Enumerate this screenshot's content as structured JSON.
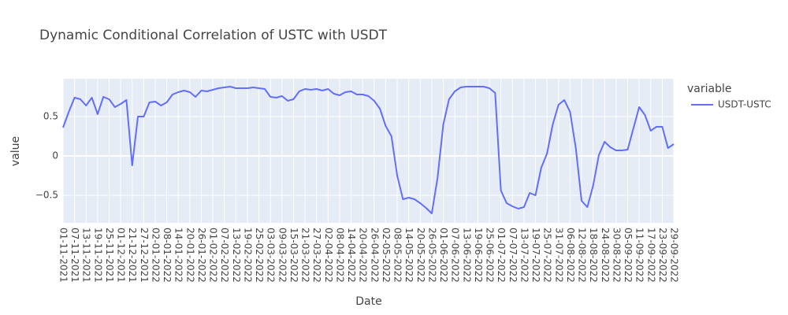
{
  "chart_data": {
    "type": "line",
    "title": "Dynamic Conditional Correlation of USTC with USDT",
    "x_label": "Date",
    "y_label": "value",
    "legend_title": "variable",
    "legend_position": "right",
    "grid": true,
    "x": [
      "01-11-2021",
      "04-11-2021",
      "07-11-2021",
      "10-11-2021",
      "13-11-2021",
      "16-11-2021",
      "19-11-2021",
      "22-11-2021",
      "25-11-2021",
      "28-11-2021",
      "01-12-2021",
      "04-12-2021",
      "21-12-2021",
      "24-12-2021",
      "27-12-2021",
      "30-12-2021",
      "02-01-2022",
      "05-01-2022",
      "08-01-2022",
      "11-01-2022",
      "14-01-2022",
      "17-01-2022",
      "20-01-2022",
      "23-01-2022",
      "26-01-2022",
      "29-01-2022",
      "01-02-2022",
      "04-02-2022",
      "07-02-2022",
      "10-02-2022",
      "13-02-2022",
      "16-02-2022",
      "19-02-2022",
      "22-02-2022",
      "25-02-2022",
      "28-02-2022",
      "03-03-2022",
      "06-03-2022",
      "09-03-2022",
      "12-03-2022",
      "15-03-2022",
      "18-03-2022",
      "21-03-2022",
      "24-03-2022",
      "27-03-2022",
      "30-03-2022",
      "02-04-2022",
      "05-04-2022",
      "08-04-2022",
      "11-04-2022",
      "14-04-2022",
      "17-04-2022",
      "20-04-2022",
      "23-04-2022",
      "26-04-2022",
      "29-04-2022",
      "02-05-2022",
      "05-05-2022",
      "08-05-2022",
      "11-05-2022",
      "14-05-2022",
      "17-05-2022",
      "20-05-2022",
      "23-05-2022",
      "26-05-2022",
      "29-05-2022",
      "01-06-2022",
      "04-06-2022",
      "07-06-2022",
      "10-06-2022",
      "13-06-2022",
      "16-06-2022",
      "19-06-2022",
      "22-06-2022",
      "25-06-2022",
      "28-06-2022",
      "01-07-2022",
      "04-07-2022",
      "07-07-2022",
      "10-07-2022",
      "13-07-2022",
      "16-07-2022",
      "19-07-2022",
      "22-07-2022",
      "25-07-2022",
      "28-07-2022",
      "31-07-2022",
      "03-08-2022",
      "06-08-2022",
      "09-08-2022",
      "12-08-2022",
      "15-08-2022",
      "18-08-2022",
      "21-08-2022",
      "24-08-2022",
      "27-08-2022",
      "30-08-2022",
      "02-09-2022",
      "05-09-2022",
      "08-09-2022",
      "11-09-2022",
      "14-09-2022",
      "17-09-2022",
      "20-09-2022",
      "23-09-2022",
      "26-09-2022",
      "29-09-2022"
    ],
    "series": [
      {
        "name": "USDT-USTC",
        "color": "#636efa",
        "values": [
          0.36,
          0.56,
          0.74,
          0.72,
          0.64,
          0.74,
          0.53,
          0.75,
          0.72,
          0.62,
          0.66,
          0.71,
          -0.12,
          0.5,
          0.5,
          0.68,
          0.69,
          0.64,
          0.68,
          0.78,
          0.81,
          0.83,
          0.81,
          0.75,
          0.83,
          0.82,
          0.84,
          0.86,
          0.87,
          0.88,
          0.86,
          0.86,
          0.86,
          0.87,
          0.86,
          0.85,
          0.75,
          0.74,
          0.76,
          0.7,
          0.72,
          0.82,
          0.85,
          0.84,
          0.85,
          0.83,
          0.85,
          0.79,
          0.77,
          0.81,
          0.82,
          0.78,
          0.78,
          0.76,
          0.7,
          0.6,
          0.38,
          0.25,
          -0.25,
          -0.55,
          -0.53,
          -0.55,
          -0.6,
          -0.66,
          -0.73,
          -0.28,
          0.4,
          0.72,
          0.82,
          0.87,
          0.88,
          0.88,
          0.88,
          0.88,
          0.86,
          0.8,
          -0.44,
          -0.6,
          -0.64,
          -0.67,
          -0.65,
          -0.47,
          -0.5,
          -0.15,
          0.03,
          0.4,
          0.65,
          0.71,
          0.56,
          0.1,
          -0.57,
          -0.65,
          -0.38,
          0.01,
          0.18,
          0.11,
          0.07,
          0.07,
          0.08,
          0.35,
          0.62,
          0.52,
          0.32,
          0.37,
          0.37,
          0.1,
          0.15
        ]
      }
    ],
    "ylim": [
      -0.85,
      0.98
    ],
    "yticks": [
      {
        "value": -0.5,
        "label": "−0.5"
      },
      0,
      0.5
    ]
  }
}
